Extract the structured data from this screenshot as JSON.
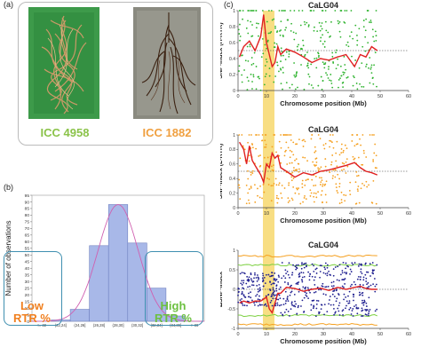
{
  "panels": {
    "a": {
      "letter": "(a)",
      "left_label": "ICC 4958",
      "left_color": "#8bc34a",
      "right_label": "ICC 1882",
      "right_color": "#f0a040"
    },
    "b": {
      "letter": "(b)",
      "low_label_1": "Low",
      "low_label_2": "RTR %",
      "low_color": "#f08020",
      "high_label_1": "High",
      "high_label_2": "RTR %",
      "high_color": "#6cc040",
      "box_color": "#3f8fb0"
    },
    "c": {
      "letter": "(c)",
      "highlight_color": "#f5d35a"
    }
  },
  "chart_data": [
    {
      "type": "bar",
      "title": "",
      "xlabel": "",
      "ylabel": "Number of observations",
      "categories": [
        "<= 22",
        "(22,24]",
        "(24,26]",
        "(26,28]",
        "(28,30]",
        "(30,32]",
        "(32,34]",
        "(34,36]",
        "> 36"
      ],
      "values": [
        0,
        1,
        9,
        57,
        88,
        59,
        25,
        4,
        0
      ],
      "ylim": [
        0,
        95
      ],
      "yticks": [
        0,
        5,
        10,
        15,
        20,
        25,
        30,
        35,
        40,
        45,
        50,
        55,
        60,
        65,
        70,
        75,
        80,
        85,
        90,
        95
      ],
      "bar_color": "#a8b8e8",
      "curve_color": "#d060b0",
      "overlay": "normal curve"
    },
    {
      "type": "scatter",
      "title": "CaLG04",
      "xlabel": "Chromosome position (Mb)",
      "ylabel": "SNP-index (H-RTR)",
      "xlim": [
        0,
        60
      ],
      "ylim": [
        0,
        1
      ],
      "xticks": [
        0,
        10,
        20,
        30,
        40,
        50,
        60
      ],
      "yticks": [
        0,
        0.2,
        0.4,
        0.6,
        0.8,
        1
      ],
      "point_color": "#2fb32f",
      "line_color": "#e02020",
      "threshold": 0.5,
      "trend": [
        [
          0.5,
          0.42
        ],
        [
          2,
          0.55
        ],
        [
          4,
          0.62
        ],
        [
          6,
          0.5
        ],
        [
          8,
          0.68
        ],
        [
          9,
          0.95
        ],
        [
          10,
          0.6
        ],
        [
          11,
          0.45
        ],
        [
          12,
          0.3
        ],
        [
          13,
          0.35
        ],
        [
          14,
          0.55
        ],
        [
          15,
          0.45
        ],
        [
          17,
          0.52
        ],
        [
          20,
          0.48
        ],
        [
          23,
          0.42
        ],
        [
          26,
          0.35
        ],
        [
          29,
          0.4
        ],
        [
          32,
          0.38
        ],
        [
          35,
          0.42
        ],
        [
          38,
          0.45
        ],
        [
          41,
          0.3
        ],
        [
          43,
          0.45
        ],
        [
          45,
          0.42
        ],
        [
          47,
          0.55
        ],
        [
          49,
          0.5
        ]
      ]
    },
    {
      "type": "scatter",
      "title": "CaLG04",
      "xlabel": "Chromosome position (Mb)",
      "ylabel": "SNP-index (L-RTR)",
      "xlim": [
        0,
        60
      ],
      "ylim": [
        0,
        1
      ],
      "xticks": [
        0,
        10,
        20,
        30,
        40,
        50,
        60
      ],
      "yticks": [
        0,
        0.2,
        0.4,
        0.6,
        0.8,
        1
      ],
      "point_color": "#f5a020",
      "line_color": "#e02020",
      "threshold": 0.5,
      "trend": [
        [
          0.5,
          0.9
        ],
        [
          2,
          0.8
        ],
        [
          3,
          0.6
        ],
        [
          4,
          0.85
        ],
        [
          5,
          0.65
        ],
        [
          6,
          0.58
        ],
        [
          8,
          0.45
        ],
        [
          9,
          0.35
        ],
        [
          10,
          0.6
        ],
        [
          11,
          0.55
        ],
        [
          12,
          0.75
        ],
        [
          13,
          0.68
        ],
        [
          14,
          0.72
        ],
        [
          15,
          0.55
        ],
        [
          17,
          0.5
        ],
        [
          20,
          0.42
        ],
        [
          23,
          0.48
        ],
        [
          26,
          0.45
        ],
        [
          29,
          0.5
        ],
        [
          32,
          0.52
        ],
        [
          35,
          0.55
        ],
        [
          38,
          0.58
        ],
        [
          41,
          0.62
        ],
        [
          43,
          0.55
        ],
        [
          45,
          0.5
        ],
        [
          47,
          0.48
        ],
        [
          49,
          0.45
        ]
      ]
    },
    {
      "type": "scatter",
      "title": "CaLG04",
      "xlabel": "Chromosome position (Mb)",
      "ylabel": "ΔSNP-index",
      "xlim": [
        0,
        60
      ],
      "ylim": [
        -1,
        1
      ],
      "xticks": [
        0,
        10,
        20,
        30,
        40,
        50,
        60
      ],
      "yticks": [
        -1,
        -0.5,
        0,
        0.5,
        1
      ],
      "point_color": "#202090",
      "line_color": "#e02020",
      "thresholds": [
        {
          "value": 0.85,
          "color": "#f5a020"
        },
        {
          "value": 0.62,
          "color": "#7cd040"
        },
        {
          "value": -0.62,
          "color": "#7cd040"
        },
        {
          "value": -0.85,
          "color": "#f5a020"
        }
      ],
      "trend": [
        [
          0.5,
          -0.35
        ],
        [
          2,
          -0.3
        ],
        [
          4,
          -0.35
        ],
        [
          6,
          -0.3
        ],
        [
          8,
          -0.3
        ],
        [
          9,
          -0.25
        ],
        [
          10,
          -0.2
        ],
        [
          11,
          -0.5
        ],
        [
          12,
          -0.6
        ],
        [
          13,
          -0.35
        ],
        [
          14,
          -0.1
        ],
        [
          15,
          -0.1
        ],
        [
          17,
          0.05
        ],
        [
          20,
          0.02
        ],
        [
          23,
          -0.05
        ],
        [
          26,
          0.0
        ],
        [
          29,
          0.03
        ],
        [
          32,
          -0.03
        ],
        [
          35,
          0.05
        ],
        [
          38,
          0.0
        ],
        [
          41,
          0.05
        ],
        [
          43,
          0.08
        ],
        [
          45,
          0.02
        ],
        [
          47,
          0.0
        ],
        [
          49,
          0.0
        ]
      ]
    }
  ]
}
